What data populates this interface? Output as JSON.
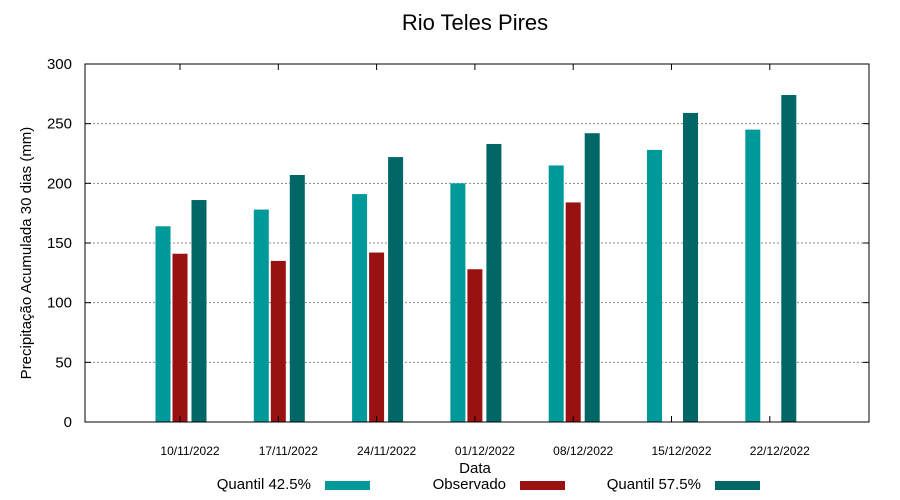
{
  "chart_data": {
    "type": "bar",
    "title": "Rio Teles Pires",
    "xlabel": "Data",
    "ylabel": "Precipitação Acumulada 30 dias (mm)",
    "ylim": [
      0,
      300
    ],
    "yticks": [
      0,
      50,
      100,
      150,
      200,
      250,
      300
    ],
    "grid": true,
    "legend_position": "bottom",
    "categories": [
      "10/11/2022",
      "17/11/2022",
      "24/11/2022",
      "01/12/2022",
      "08/12/2022",
      "15/12/2022",
      "22/12/2022"
    ],
    "series": [
      {
        "name": "Quantil 42.5%",
        "color": "#009999",
        "values": [
          164,
          178,
          191,
          200,
          215,
          228,
          245
        ]
      },
      {
        "name": "Observado",
        "color": "#991111",
        "values": [
          141,
          135,
          142,
          128,
          184,
          null,
          null
        ]
      },
      {
        "name": "Quantil 57.5%",
        "color": "#006666",
        "values": [
          186,
          207,
          222,
          233,
          242,
          259,
          274
        ]
      }
    ]
  }
}
